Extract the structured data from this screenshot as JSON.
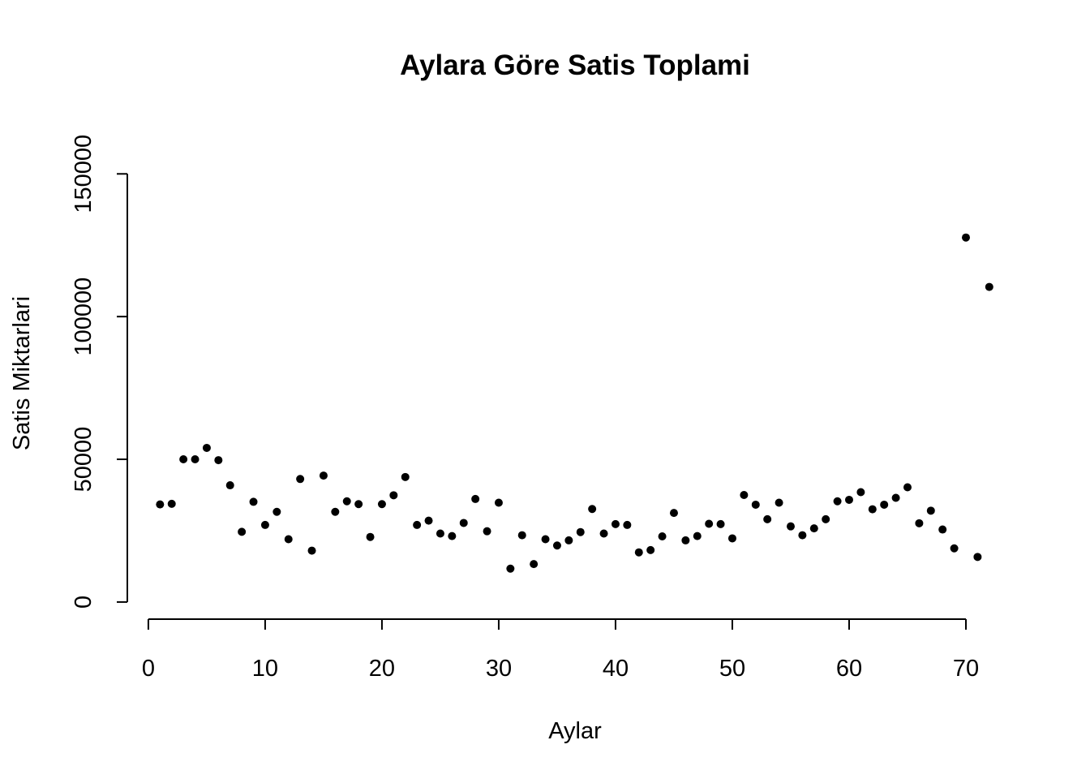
{
  "chart_data": {
    "type": "scatter",
    "title": "Aylara Göre Satis Toplami",
    "xlabel": "Aylar",
    "ylabel": "Satis Miktarlari",
    "xlim": [
      -1.8,
      75
    ],
    "ylim": [
      -6000,
      166000
    ],
    "x_ticks": [
      0,
      10,
      20,
      30,
      40,
      50,
      60,
      70
    ],
    "y_ticks": [
      0,
      50000,
      100000,
      150000
    ],
    "x_tick_labels": [
      "0",
      "10",
      "20",
      "30",
      "40",
      "50",
      "60",
      "70"
    ],
    "y_tick_labels": [
      "0",
      "50000",
      "100000",
      "150000"
    ],
    "grid": false,
    "legend": "none",
    "point_color": "#000000",
    "x": [
      1,
      2,
      3,
      4,
      5,
      6,
      7,
      8,
      9,
      10,
      11,
      12,
      13,
      14,
      15,
      16,
      17,
      18,
      19,
      20,
      21,
      22,
      23,
      24,
      25,
      26,
      27,
      28,
      29,
      30,
      31,
      32,
      33,
      34,
      35,
      36,
      37,
      38,
      39,
      40,
      41,
      42,
      43,
      44,
      45,
      46,
      47,
      48,
      49,
      50,
      51,
      52,
      53,
      54,
      55,
      56,
      57,
      58,
      59,
      60,
      61,
      62,
      63,
      64,
      65,
      66,
      67,
      68,
      69,
      70,
      71,
      72
    ],
    "y": [
      34200,
      34400,
      50000,
      50000,
      54000,
      49700,
      40900,
      24600,
      35100,
      27000,
      31600,
      22000,
      43100,
      18000,
      44300,
      31600,
      35300,
      34300,
      22800,
      34300,
      37400,
      43800,
      27000,
      28500,
      24000,
      23100,
      27700,
      36100,
      24800,
      34800,
      11700,
      23400,
      13300,
      22000,
      19800,
      21600,
      24500,
      32600,
      24000,
      27300,
      27000,
      17400,
      18200,
      23000,
      31200,
      21600,
      23100,
      27400,
      27300,
      22300,
      37500,
      34100,
      29000,
      34800,
      26500,
      23400,
      25800,
      29000,
      35300,
      35800,
      38500,
      32500,
      34100,
      36500,
      40200,
      27600,
      32000,
      25400,
      18800,
      127700,
      15800,
      110400
    ]
  }
}
